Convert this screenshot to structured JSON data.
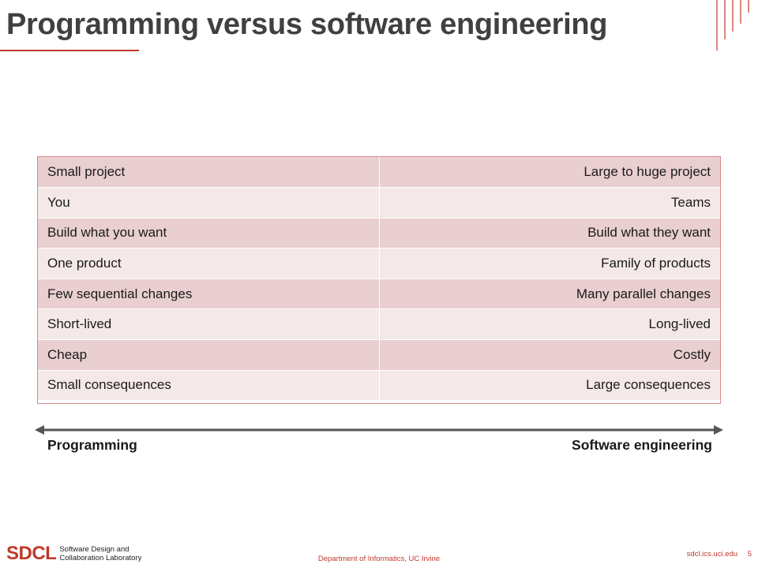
{
  "slide": {
    "title": "Programming versus software engineering"
  },
  "comparison": {
    "rows": [
      {
        "programming": "Small project",
        "software_engineering": "Large to huge project"
      },
      {
        "programming": "You",
        "software_engineering": "Teams"
      },
      {
        "programming": "Build what you want",
        "software_engineering": "Build what they want"
      },
      {
        "programming": "One product",
        "software_engineering": "Family of products"
      },
      {
        "programming": "Few sequential changes",
        "software_engineering": "Many parallel changes"
      },
      {
        "programming": "Short-lived",
        "software_engineering": "Long-lived"
      },
      {
        "programming": "Cheap",
        "software_engineering": "Costly"
      },
      {
        "programming": "Small consequences",
        "software_engineering": "Large consequences"
      }
    ]
  },
  "spectrum": {
    "left_label": "Programming",
    "right_label": "Software engineering"
  },
  "footer": {
    "logo": "SDCL",
    "lab_line1": "Software Design and",
    "lab_line2": "Collaboration Laboratory",
    "department": "Department of Informatics, UC Irvine",
    "site": "sdcl.ics.uci.edu",
    "page": "5"
  },
  "colors": {
    "accent": "#c0392b",
    "row_dark": "#e9cfd0",
    "row_light": "#f4e8e8",
    "title": "#404040"
  }
}
